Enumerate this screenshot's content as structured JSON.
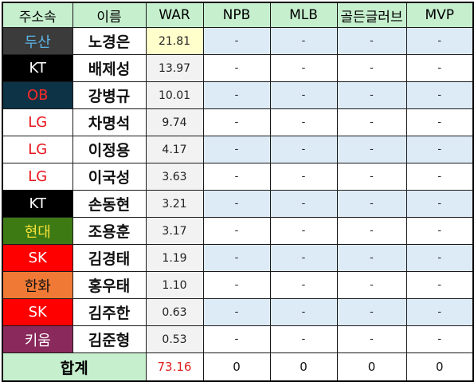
{
  "headers": [
    "주소속",
    "이름",
    "WAR",
    "NPB",
    "MLB",
    "골든글러브",
    "MVP"
  ],
  "rows": [
    {
      "team": "두산",
      "team_bg": "#3b3b3b",
      "team_fg": "#5bb4e6",
      "name": "노경은",
      "war": "21.81",
      "npb": "-",
      "mlb": "-",
      "gg": "-",
      "mvp": "-"
    },
    {
      "team": "KT",
      "team_bg": "#000000",
      "team_fg": "#ffffff",
      "name": "배제성",
      "war": "13.97",
      "npb": "-",
      "mlb": "-",
      "gg": "-",
      "mvp": "-"
    },
    {
      "team": "OB",
      "team_bg": "#0d3446",
      "team_fg": "#ff2a2a",
      "name": "강병규",
      "war": "10.01",
      "npb": "-",
      "mlb": "-",
      "gg": "-",
      "mvp": "-"
    },
    {
      "team": "LG",
      "team_bg": "#ffffff",
      "team_fg": "#e8141c",
      "name": "차명석",
      "war": "9.74",
      "npb": "-",
      "mlb": "-",
      "gg": "-",
      "mvp": "-"
    },
    {
      "team": "LG",
      "team_bg": "#ffffff",
      "team_fg": "#e8141c",
      "name": "이정용",
      "war": "4.17",
      "npb": "-",
      "mlb": "-",
      "gg": "-",
      "mvp": "-"
    },
    {
      "team": "LG",
      "team_bg": "#ffffff",
      "team_fg": "#e8141c",
      "name": "이국성",
      "war": "3.63",
      "npb": "-",
      "mlb": "-",
      "gg": "-",
      "mvp": "-"
    },
    {
      "team": "KT",
      "team_bg": "#000000",
      "team_fg": "#ffffff",
      "name": "손동현",
      "war": "3.21",
      "npb": "-",
      "mlb": "-",
      "gg": "-",
      "mvp": "-"
    },
    {
      "team": "현대",
      "team_bg": "#3d7a14",
      "team_fg": "#f5e13a",
      "name": "조용훈",
      "war": "3.17",
      "npb": "-",
      "mlb": "-",
      "gg": "-",
      "mvp": "-"
    },
    {
      "team": "SK",
      "team_bg": "#ff0000",
      "team_fg": "#ffffff",
      "name": "김경태",
      "war": "1.19",
      "npb": "-",
      "mlb": "-",
      "gg": "-",
      "mvp": "-"
    },
    {
      "team": "한화",
      "team_bg": "#f07a35",
      "team_fg": "#111111",
      "name": "홍우태",
      "war": "1.10",
      "npb": "-",
      "mlb": "-",
      "gg": "-",
      "mvp": "-"
    },
    {
      "team": "SK",
      "team_bg": "#ff0000",
      "team_fg": "#ffffff",
      "name": "김주한",
      "war": "0.63",
      "npb": "-",
      "mlb": "-",
      "gg": "-",
      "mvp": "-"
    },
    {
      "team": "키움",
      "team_bg": "#8a2a5c",
      "team_fg": "#ffffff",
      "name": "김준형",
      "war": "0.53",
      "npb": "-",
      "mlb": "-",
      "gg": "-",
      "mvp": "-"
    }
  ],
  "totals": {
    "label": "합계",
    "war": "73.16",
    "npb": "0",
    "mlb": "0",
    "gg": "0",
    "mvp": "0"
  }
}
